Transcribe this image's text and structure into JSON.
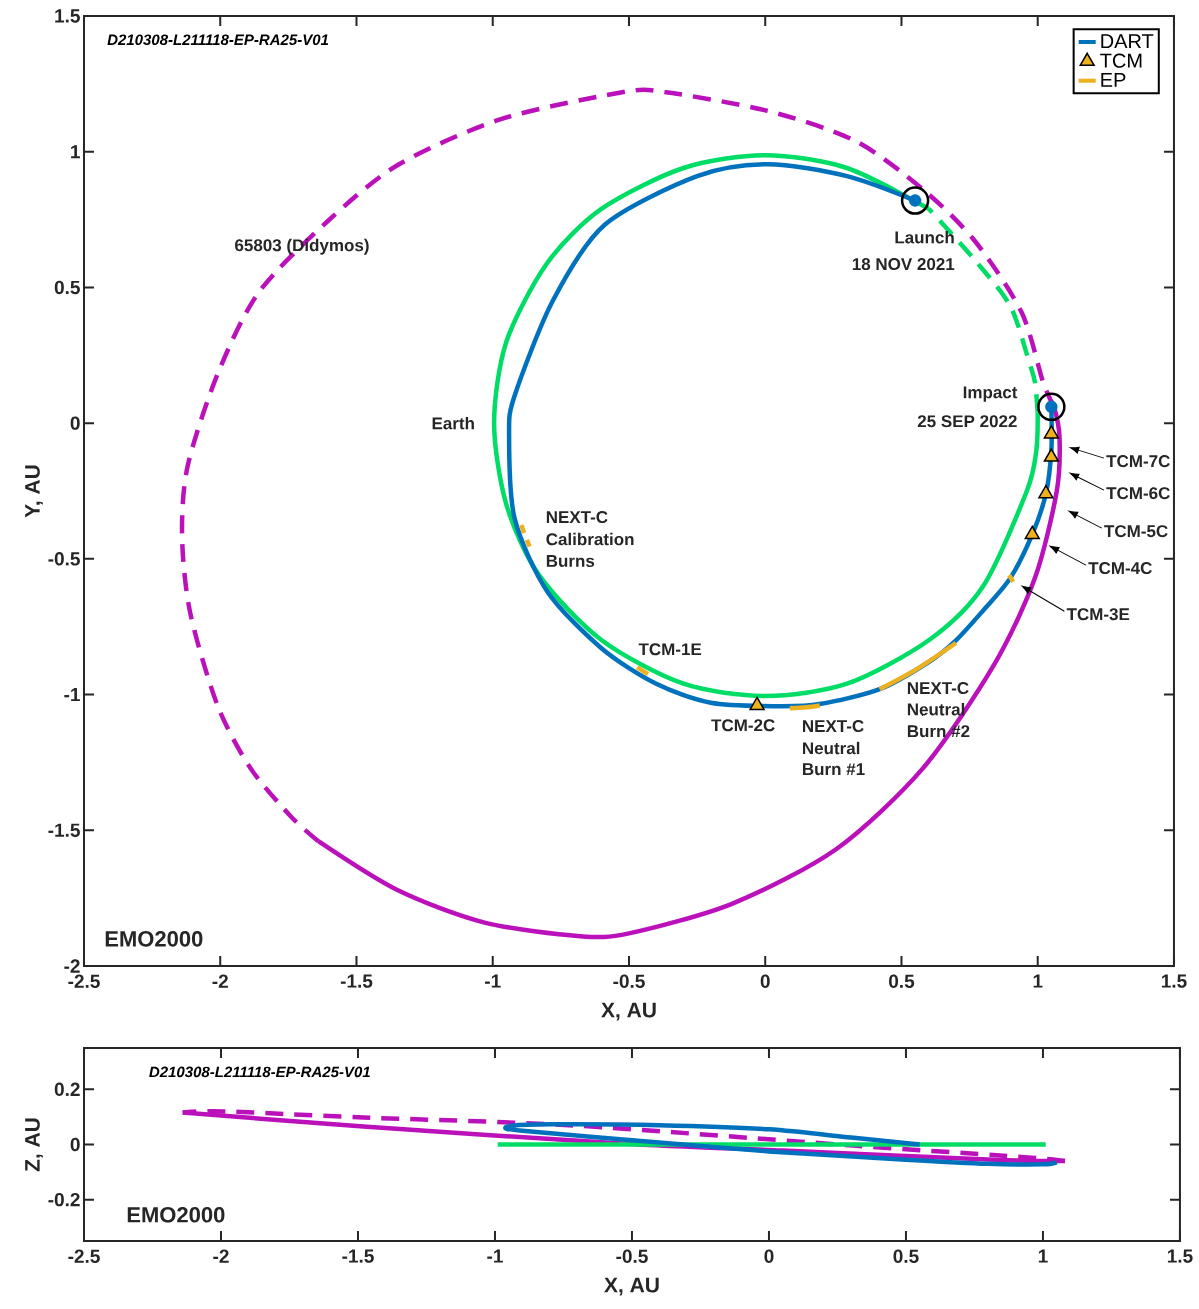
{
  "chart_data": [
    {
      "type": "line",
      "title": "D210308-L211118-EP-RA25-V01",
      "xlabel": "X, AU",
      "ylabel": "Y, AU",
      "xlim": [
        -2.5,
        1.5
      ],
      "ylim": [
        -2,
        1.5
      ],
      "xticks": [
        -2.5,
        -2,
        -1.5,
        -1,
        -0.5,
        0,
        0.5,
        1,
        1.5
      ],
      "yticks": [
        -2,
        -1.5,
        -1,
        -0.5,
        0,
        0.5,
        1,
        1.5
      ],
      "legend": "top right",
      "series": [
        {
          "color": "#bb11bb",
          "line_style": "dashed",
          "x": [
            1.06,
            1.02,
            0.94,
            0.77,
            0.58,
            0.33,
            0.01,
            -0.37,
            -0.52,
            -0.97,
            -1.35,
            -1.61,
            -1.86,
            -2.01,
            -2.12,
            -2.14,
            -2.11,
            -2.01,
            -1.89,
            -1.74,
            -1.64
          ],
          "values": [
            0.06,
            0.15,
            0.41,
            0.67,
            0.86,
            1.04,
            1.15,
            1.22,
            1.22,
            1.12,
            0.95,
            0.74,
            0.48,
            0.18,
            -0.16,
            -0.42,
            -0.7,
            -1.04,
            -1.27,
            -1.45,
            -1.54
          ]
        },
        {
          "color": "#bb11bb",
          "line_style": "solid",
          "x": [
            -1.64,
            -1.35,
            -1.03,
            -0.68,
            -0.5,
            -0.12,
            0.26,
            0.58,
            0.84,
            0.99,
            1.07,
            1.08,
            1.06
          ],
          "values": [
            -1.54,
            -1.72,
            -1.84,
            -1.89,
            -1.88,
            -1.77,
            -1.57,
            -1.27,
            -0.89,
            -0.57,
            -0.25,
            -0.05,
            0.06
          ]
        },
        {
          "color": "#00dd66",
          "line_style": "solid",
          "x": [
            0.6,
            0.3,
            0.0,
            -0.3,
            -0.6,
            -0.8,
            -0.95,
            -0.995,
            -0.95,
            -0.83,
            -0.6,
            -0.3,
            0.0,
            0.3,
            0.6,
            0.8,
            0.96,
            0.995,
            1.0
          ],
          "values": [
            0.79,
            0.94,
            0.987,
            0.94,
            0.79,
            0.59,
            0.3,
            0.0,
            -0.3,
            -0.56,
            -0.8,
            -0.96,
            -1.005,
            -0.96,
            -0.8,
            -0.6,
            -0.25,
            -0.1,
            0.04
          ]
        },
        {
          "color": "#00dd66",
          "line_style": "dashed",
          "x": [
            1.0,
            0.99,
            0.97,
            0.9,
            0.77,
            0.6
          ],
          "values": [
            0.04,
            0.15,
            0.22,
            0.43,
            0.6,
            0.79
          ]
        },
        {
          "name": "DART",
          "color": "#0072bd",
          "line_style": "solid",
          "x": [
            0.55,
            0.3,
            0.01,
            -0.25,
            -0.59,
            -0.78,
            -0.92,
            -0.94,
            -0.92,
            -0.8,
            -0.6,
            -0.4,
            -0.2,
            0.04,
            0.2,
            0.42,
            0.6,
            0.7,
            0.8,
            0.9,
            0.98,
            1.03,
            1.05,
            1.05
          ],
          "values": [
            0.82,
            0.91,
            0.954,
            0.91,
            0.73,
            0.45,
            0.1,
            -0.04,
            -0.35,
            -0.62,
            -0.83,
            -0.96,
            -1.03,
            -1.043,
            -1.035,
            -0.98,
            -0.88,
            -0.8,
            -0.69,
            -0.57,
            -0.41,
            -0.26,
            -0.1,
            0.06
          ]
        },
        {
          "name": "TCM",
          "type": "scatter",
          "marker": "triangle",
          "color": "#edb120",
          "x": [
            -0.03,
            0.98,
            1.03,
            1.05,
            1.05
          ],
          "values": [
            -1.04,
            -0.41,
            -0.26,
            -0.125,
            -0.04
          ]
        },
        {
          "name": "EP",
          "color": "#edb120",
          "line_style": "solid",
          "x": [
            -0.895,
            -0.885,
            -0.88,
            -0.875,
            -0.865,
            -0.86,
            -0.47,
            -0.43,
            -0.4,
            0.09,
            0.15,
            0.2,
            0.25,
            0.42,
            0.55,
            0.7,
            0.75,
            0.895,
            0.91
          ],
          "values": [
            -0.375,
            -0.405,
            null,
            -0.43,
            -0.455,
            null,
            -0.9,
            -0.925,
            null,
            -1.05,
            -1.047,
            -1.04,
            null,
            -0.98,
            -0.91,
            -0.81,
            null,
            -0.56,
            -0.585
          ]
        },
        {
          "type": "scatter",
          "marker": "circle",
          "color": "#0072bd",
          "x": [
            0.55,
            1.05
          ],
          "values": [
            0.82,
            0.06
          ]
        }
      ],
      "annotations": [
        "65803 (Didymos)",
        "Earth",
        "Launch",
        "18 NOV 2021",
        "Impact",
        "25 SEP 2022",
        "NEXT-C",
        "Calibration",
        "Burns",
        "TCM-1E",
        "TCM-2C",
        "NEXT-C",
        "Neutral",
        "Burn #1",
        "NEXT-C",
        "Neutral",
        "Burn #2",
        "TCM-7C",
        "TCM-6C",
        "TCM-5C",
        {
          "text": "TCM-4C",
          "x": 1.039,
          "y": -0.45
        },
        "TCM-3E",
        "EMO2000"
      ]
    },
    {
      "type": "line",
      "title": "D210308-L211118-EP-RA25-V01",
      "xlabel": "X, AU",
      "ylabel": "Z, AU",
      "xlim": [
        -2.5,
        1.5
      ],
      "ylim": [
        -0.35,
        0.35
      ],
      "xticks": [
        -2.5,
        -2,
        -1.5,
        -1,
        -0.5,
        0,
        0.5,
        1,
        1.5
      ],
      "yticks": [
        -0.2,
        0,
        0.2
      ],
      "series": [
        {
          "color": "#bb11bb",
          "line_style": "dashed",
          "x": [
            1.08,
            0.945,
            0.31,
            -0.715,
            -1.48,
            -1.99,
            -2.14
          ],
          "values": [
            -0.06,
            -0.047,
            -0.004,
            0.069,
            0.098,
            0.12,
            0.116
          ]
        },
        {
          "color": "#bb11bb",
          "line_style": "solid",
          "x": [
            -2.14,
            -1.48,
            -0.54,
            0.05,
            0.82,
            1.08
          ],
          "values": [
            0.116,
            0.065,
            0.004,
            -0.022,
            -0.055,
            -0.06
          ]
        },
        {
          "color": "#00dd66",
          "line_style": "solid",
          "x": [
            -0.99,
            1.01
          ],
          "values": [
            0,
            0
          ]
        },
        {
          "color": "#0072bd",
          "line_style": "solid",
          "x": [
            0.55,
            0.3,
            0.0,
            -0.4,
            -0.8,
            -0.94,
            -0.96,
            -0.9,
            -0.5,
            0.0,
            0.5,
            0.8,
            1.0,
            1.05
          ],
          "values": [
            0.0,
            0.025,
            0.055,
            0.07,
            0.073,
            0.068,
            0.058,
            0.05,
            0.015,
            -0.025,
            -0.055,
            -0.07,
            -0.072,
            -0.065
          ]
        }
      ],
      "annotations": [
        "EMO2000"
      ]
    }
  ]
}
